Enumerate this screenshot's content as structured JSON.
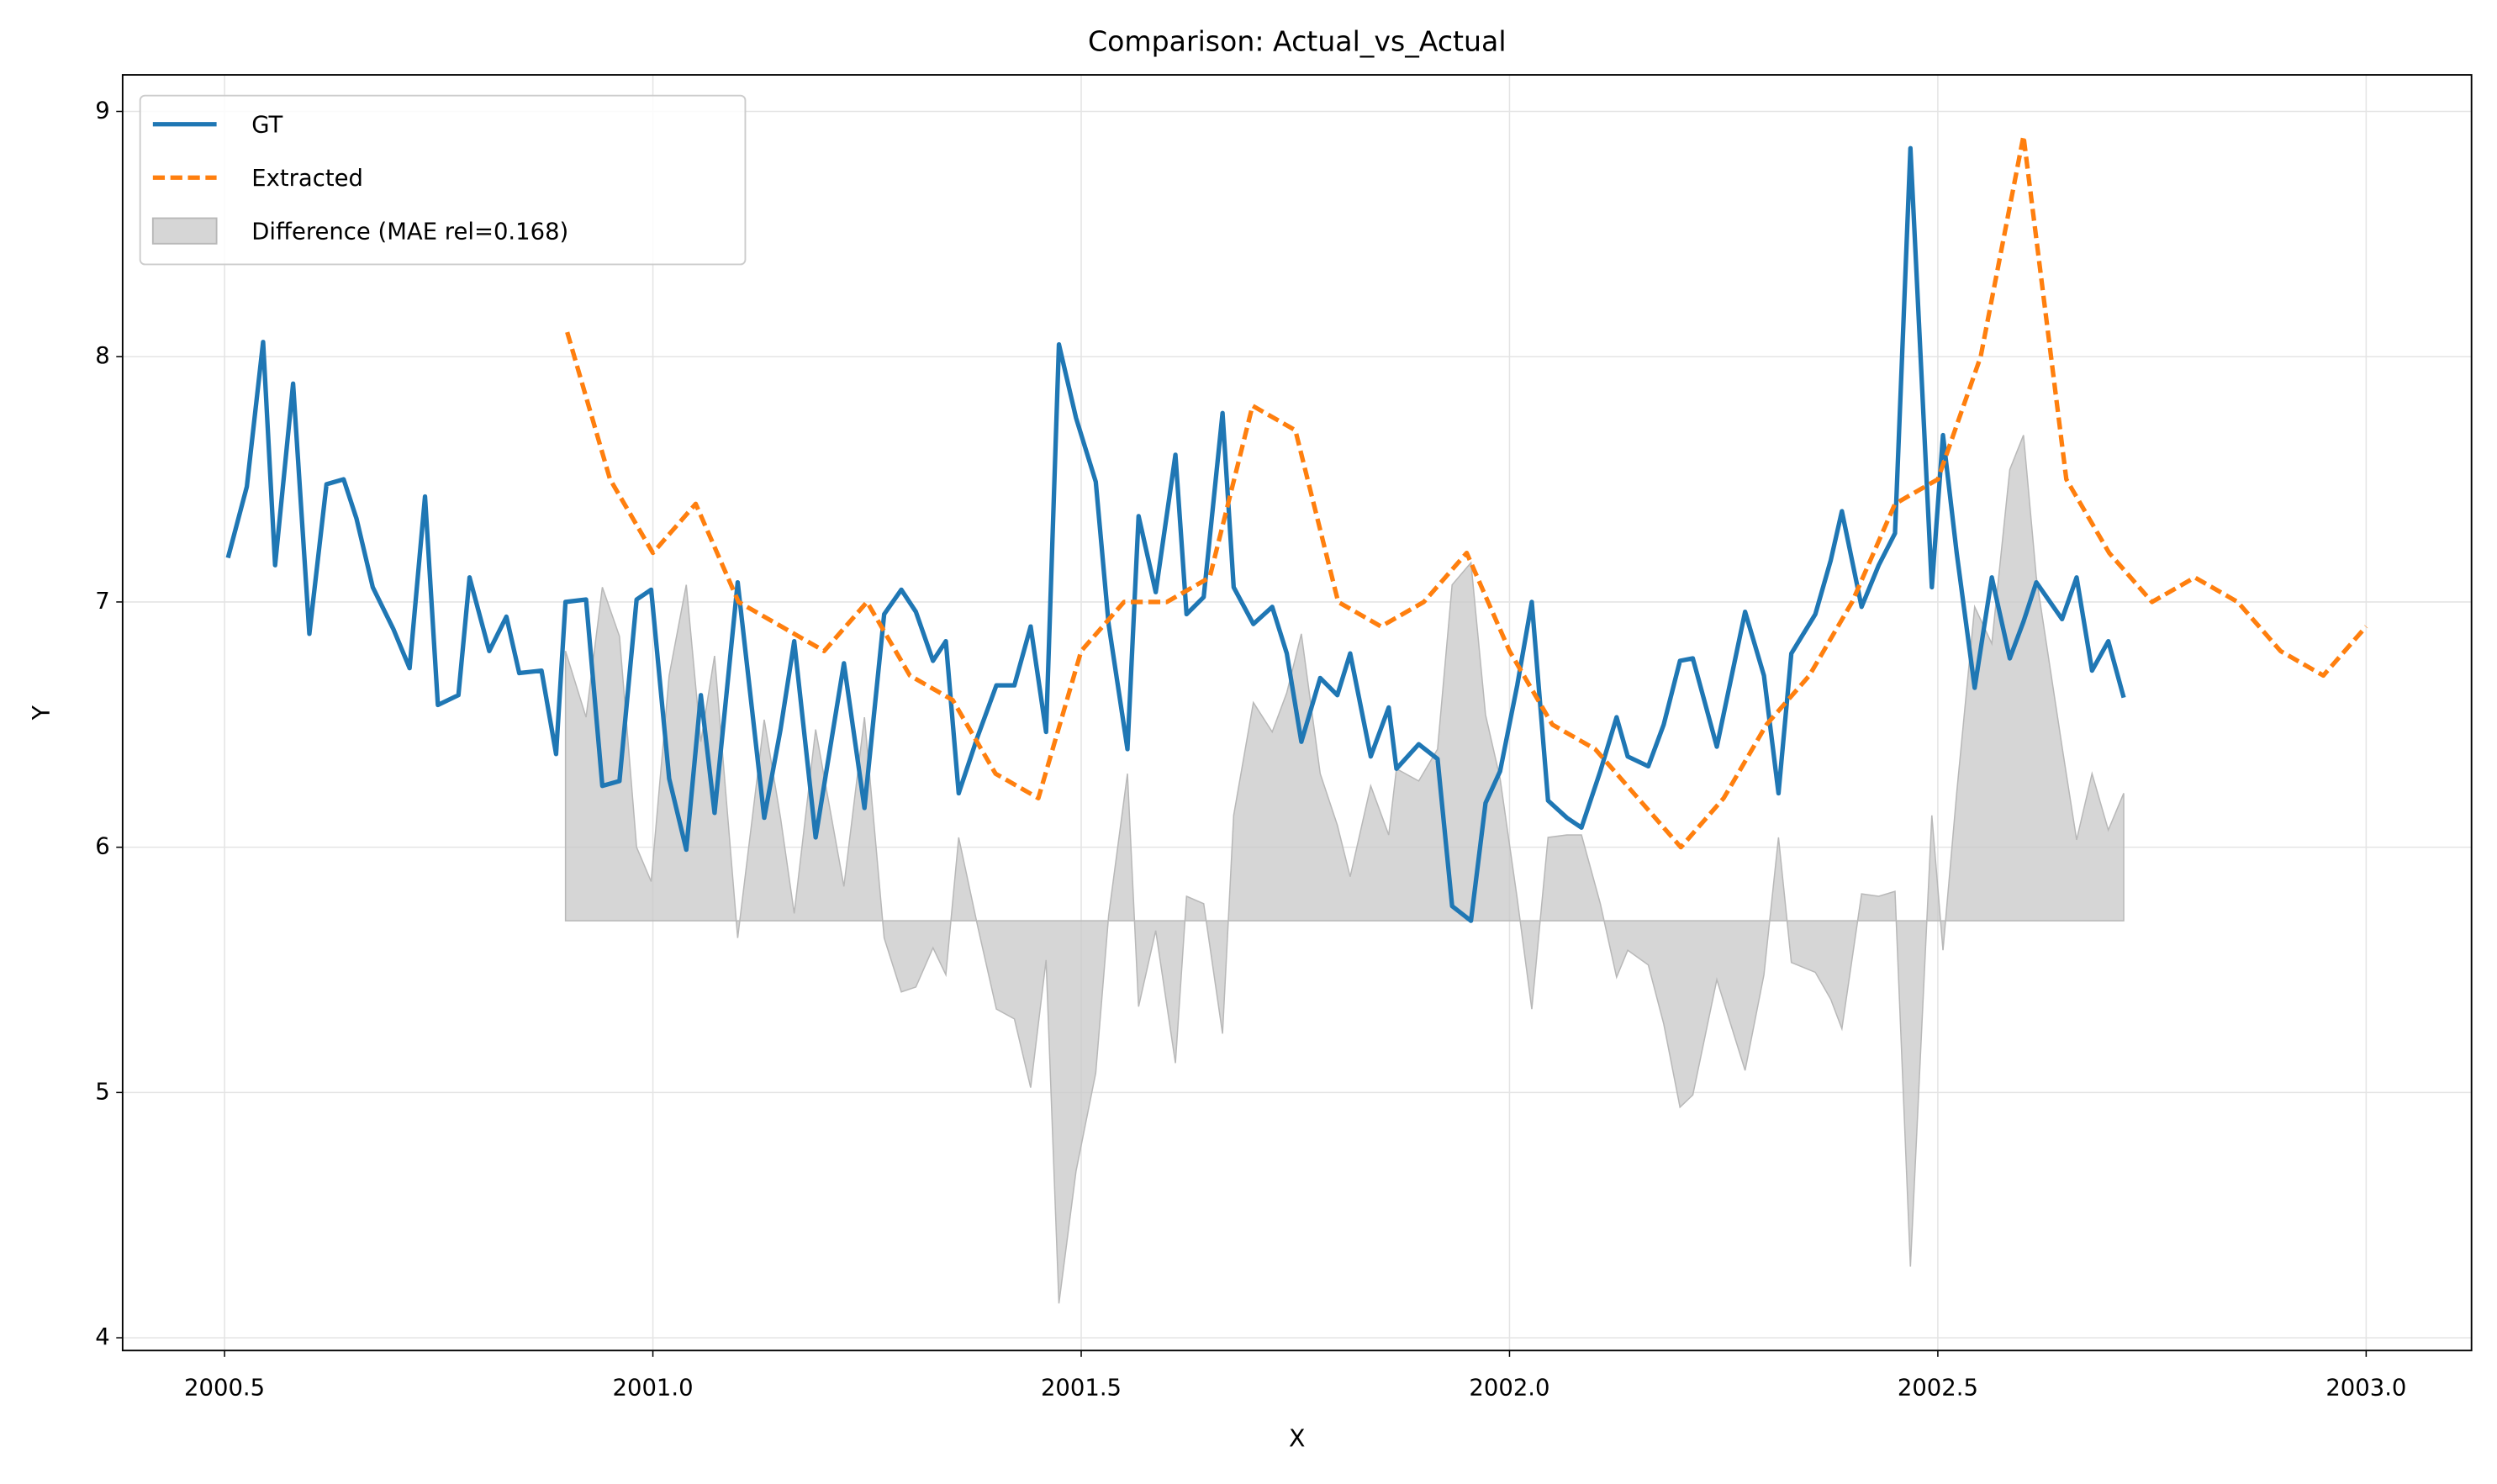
{
  "chart_data": {
    "type": "line",
    "title": "Comparison: Actual_vs_Actual",
    "xlabel": "X",
    "ylabel": "Y",
    "xlim": [
      2000.381,
      2003.123
    ],
    "ylim": [
      3.948,
      9.149
    ],
    "xticks": [
      2000.5,
      {
        "value": 2001,
        "label": "2001.0"
      },
      2001.5,
      {
        "value": 2002,
        "label": "2002.0"
      },
      2002.5,
      {
        "value": 2003,
        "label": "2003.0"
      }
    ],
    "yticks": [
      4,
      5,
      6,
      7,
      8,
      9
    ],
    "grid": true,
    "legend": "upper left",
    "series": [
      {
        "name": "GT",
        "color": "#1f77b4",
        "style": "solid",
        "x": [
          2000.504,
          2000.526,
          2000.545,
          2000.559,
          2000.58,
          2000.599,
          2000.619,
          2000.639,
          2000.654,
          2000.673,
          2000.697,
          2000.716,
          2000.734,
          2000.749,
          2000.773,
          2000.786,
          2000.809,
          2000.829,
          2000.844,
          2000.87,
          2000.887,
          2000.898,
          2000.922,
          2000.941,
          2000.961,
          2000.981,
          2000.998,
          2001.019,
          2001.039,
          2001.056,
          2001.072,
          2001.099,
          2001.13,
          2001.149,
          2001.165,
          2001.19,
          2001.223,
          2001.247,
          2001.27,
          2001.29,
          2001.307,
          2001.327,
          2001.342,
          2001.357,
          2001.379,
          2001.401,
          2001.422,
          2001.441,
          2001.459,
          2001.474,
          2001.494,
          2001.517,
          2001.532,
          2001.554,
          2001.567,
          2001.587,
          2001.61,
          2001.623,
          2001.643,
          2001.665,
          2001.678,
          2001.701,
          2001.723,
          2001.74,
          2001.757,
          2001.779,
          2001.799,
          2001.814,
          2001.838,
          2001.859,
          2001.868,
          2001.894,
          2001.916,
          2001.933,
          2001.955,
          2001.972,
          2001.989,
          2002.009,
          2002.026,
          2002.045,
          2002.067,
          2002.084,
          2002.106,
          2002.125,
          2002.138,
          2002.162,
          2002.18,
          2002.199,
          2002.214,
          2002.242,
          2002.275,
          2002.297,
          2002.314,
          2002.329,
          2002.357,
          2002.375,
          2002.388,
          2002.411,
          2002.431,
          2002.45,
          2002.468,
          2002.493,
          2002.506,
          2002.522,
          2002.543,
          2002.563,
          2002.584,
          2002.6,
          2002.615,
          2002.645,
          2002.662,
          2002.68,
          2002.699,
          2002.717
        ],
        "values": [
          7.18,
          7.47,
          8.06,
          7.15,
          7.89,
          6.87,
          7.48,
          7.5,
          7.34,
          7.06,
          6.89,
          6.73,
          7.43,
          6.58,
          6.62,
          7.1,
          6.8,
          6.94,
          6.71,
          6.72,
          6.38,
          7.0,
          7.01,
          6.25,
          6.27,
          7.01,
          7.05,
          6.28,
          5.99,
          6.62,
          6.14,
          7.08,
          6.12,
          6.48,
          6.84,
          6.04,
          6.75,
          6.16,
          6.95,
          7.05,
          6.96,
          6.76,
          6.84,
          6.22,
          6.45,
          6.66,
          6.66,
          6.9,
          6.47,
          8.05,
          7.75,
          7.49,
          6.91,
          6.4,
          7.35,
          7.04,
          7.6,
          6.95,
          7.02,
          7.77,
          7.06,
          6.91,
          6.98,
          6.79,
          6.43,
          6.69,
          6.62,
          6.79,
          6.37,
          6.57,
          6.32,
          6.42,
          6.36,
          5.76,
          5.7,
          6.18,
          6.31,
          6.66,
          7.0,
          6.19,
          6.12,
          6.08,
          6.31,
          6.53,
          6.37,
          6.33,
          6.5,
          6.76,
          6.77,
          6.41,
          6.96,
          6.7,
          6.22,
          6.79,
          6.95,
          7.17,
          7.37,
          6.98,
          7.15,
          7.28,
          8.85,
          7.06,
          7.68,
          7.2,
          6.65,
          7.1,
          6.77,
          6.92,
          7.08,
          6.93,
          7.1,
          6.72,
          6.84,
          6.61
        ]
      },
      {
        "name": "Extracted",
        "color": "#ff7f0e",
        "style": "dashed",
        "x": [
          2000.9,
          2000.95,
          2001,
          2001.05,
          2001.1,
          2001.15,
          2001.2,
          2001.25,
          2001.3,
          2001.35,
          2001.4,
          2001.45,
          2001.5,
          2001.55,
          2001.6,
          2001.65,
          2001.7,
          2001.75,
          2001.8,
          2001.85,
          2001.9,
          2001.95,
          2002,
          2002.05,
          2002.1,
          2002.15,
          2002.2,
          2002.25,
          2002.3,
          2002.35,
          2002.4,
          2002.45,
          2002.5,
          2002.55,
          2002.6,
          2002.65,
          2002.7,
          2002.75,
          2002.8,
          2002.85,
          2002.9,
          2002.95,
          2003
        ],
        "values": [
          8.1,
          7.5,
          7.2,
          7.4,
          7.0,
          6.9,
          6.8,
          7.0,
          6.7,
          6.6,
          6.3,
          6.2,
          6.8,
          7.0,
          7.0,
          7.1,
          7.8,
          7.7,
          7.0,
          6.9,
          7.0,
          7.2,
          6.8,
          6.5,
          6.4,
          6.2,
          6.0,
          6.2,
          6.5,
          6.7,
          7.0,
          7.4,
          7.5,
          8.0,
          8.9,
          7.5,
          7.2,
          7.0,
          7.1,
          7.0,
          6.8,
          6.7,
          6.9
        ]
      },
      {
        "name": "Difference (MAE rel=0.168)",
        "color": "#c8c8c8",
        "style": "area",
        "baseline": 5.7,
        "x": [
          2000.898,
          2000.922,
          2000.941,
          2000.961,
          2000.981,
          2000.998,
          2001.019,
          2001.039,
          2001.056,
          2001.072,
          2001.099,
          2001.13,
          2001.149,
          2001.165,
          2001.19,
          2001.223,
          2001.247,
          2001.27,
          2001.29,
          2001.307,
          2001.327,
          2001.342,
          2001.357,
          2001.379,
          2001.401,
          2001.422,
          2001.441,
          2001.459,
          2001.474,
          2001.494,
          2001.517,
          2001.532,
          2001.554,
          2001.567,
          2001.587,
          2001.61,
          2001.623,
          2001.643,
          2001.665,
          2001.678,
          2001.701,
          2001.723,
          2001.74,
          2001.757,
          2001.779,
          2001.799,
          2001.814,
          2001.838,
          2001.859,
          2001.868,
          2001.894,
          2001.916,
          2001.933,
          2001.955,
          2001.972,
          2001.989,
          2002.009,
          2002.026,
          2002.045,
          2002.067,
          2002.084,
          2002.106,
          2002.125,
          2002.138,
          2002.162,
          2002.18,
          2002.199,
          2002.214,
          2002.242,
          2002.275,
          2002.297,
          2002.314,
          2002.329,
          2002.357,
          2002.375,
          2002.388,
          2002.411,
          2002.431,
          2002.45,
          2002.468,
          2002.493,
          2002.506,
          2002.522,
          2002.543,
          2002.563,
          2002.584,
          2002.6,
          2002.615,
          2002.645,
          2002.662,
          2002.68,
          2002.699,
          2002.717
        ],
        "values": [
          6.8,
          6.53,
          7.06,
          6.86,
          6.0,
          5.86,
          6.7,
          7.07,
          6.43,
          6.78,
          5.63,
          6.52,
          6.12,
          5.73,
          6.48,
          5.84,
          6.53,
          5.63,
          5.41,
          5.43,
          5.59,
          5.48,
          6.04,
          5.68,
          5.34,
          5.3,
          5.02,
          5.54,
          4.14,
          4.68,
          5.08,
          5.72,
          6.3,
          5.35,
          5.66,
          5.12,
          5.8,
          5.77,
          5.24,
          6.13,
          6.59,
          6.47,
          6.63,
          6.87,
          6.3,
          6.09,
          5.88,
          6.25,
          6.05,
          6.32,
          6.27,
          6.4,
          7.07,
          7.16,
          6.54,
          6.28,
          5.79,
          5.34,
          6.04,
          6.05,
          6.05,
          5.77,
          5.47,
          5.58,
          5.52,
          5.28,
          4.94,
          4.99,
          5.46,
          5.09,
          5.48,
          6.04,
          5.53,
          5.49,
          5.38,
          5.26,
          5.81,
          5.8,
          5.82,
          4.29,
          6.13,
          5.58,
          6.22,
          6.98,
          6.83,
          7.54,
          7.68,
          7.1,
          6.41,
          6.03,
          6.3,
          6.07,
          6.22
        ]
      }
    ]
  }
}
